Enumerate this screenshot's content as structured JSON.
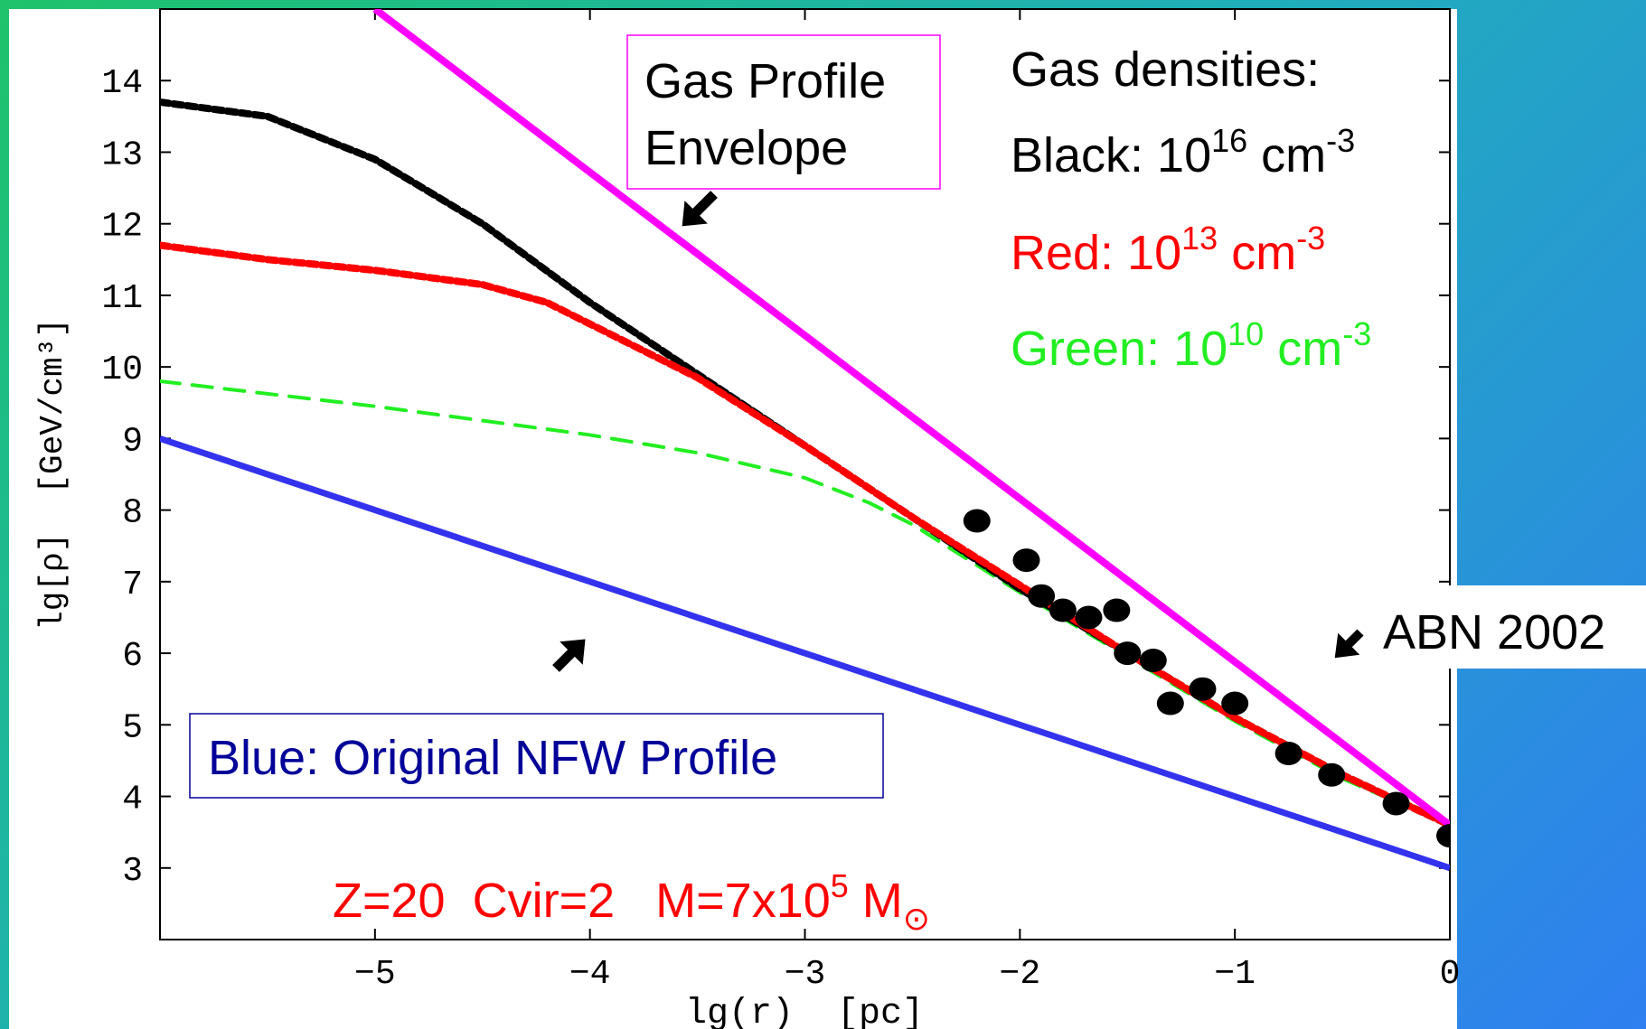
{
  "chart_data": {
    "type": "line",
    "xlabel": "lg(r)  [pc]",
    "ylabel": "lg[ρ]  [GeV/cm³]",
    "xlim": [
      -6,
      0
    ],
    "ylim": [
      2,
      15
    ],
    "xticks": [
      "-5",
      "-4",
      "-3",
      "-2",
      "-1",
      "0"
    ],
    "yticks": [
      "3",
      "4",
      "5",
      "6",
      "7",
      "8",
      "9",
      "10",
      "11",
      "12",
      "13",
      "14"
    ],
    "series": [
      {
        "name": "Gas Profile Envelope",
        "style": "solid",
        "color": "#ff00ff",
        "x": [
          -5.0,
          0
        ],
        "y": [
          15.0,
          3.6
        ]
      },
      {
        "name": "Original NFW Profile",
        "style": "solid",
        "color": "#3333ee",
        "x": [
          -6,
          0
        ],
        "y": [
          9.0,
          3.0
        ]
      },
      {
        "name": "Black",
        "style": "dashed",
        "color": "#000000",
        "x": [
          -6,
          -5.5,
          -5.0,
          -4.5,
          -4.0,
          -3.5,
          -3.0,
          -2.5,
          -2.0,
          -1.5,
          -1.0,
          -0.5,
          0
        ],
        "y": [
          13.7,
          13.5,
          12.9,
          12.0,
          10.9,
          9.9,
          8.9,
          7.9,
          6.9,
          6.0,
          5.1,
          4.3,
          3.6
        ]
      },
      {
        "name": "Red",
        "style": "dashed",
        "color": "#ff0000",
        "x": [
          -6,
          -5.5,
          -5.0,
          -4.5,
          -4.2,
          -4.0,
          -3.5,
          -3.0,
          -2.5,
          -2.0,
          -1.5,
          -1.0,
          -0.5,
          0
        ],
        "y": [
          11.7,
          11.5,
          11.35,
          11.15,
          10.9,
          10.6,
          9.85,
          8.9,
          7.9,
          6.95,
          6.0,
          5.1,
          4.3,
          3.6
        ]
      },
      {
        "name": "Green",
        "style": "dashed",
        "color": "#22ee22",
        "x": [
          -6,
          -5.0,
          -4.0,
          -3.5,
          -3.0,
          -2.7,
          -2.5,
          -2.0,
          -1.5,
          -1.0,
          -0.5,
          0
        ],
        "y": [
          9.8,
          9.45,
          9.05,
          8.8,
          8.45,
          8.1,
          7.8,
          6.85,
          5.95,
          5.05,
          4.25,
          3.6
        ]
      }
    ],
    "scatter": {
      "name": "ABN 2002",
      "color": "#000000",
      "x": [
        -2.2,
        -1.97,
        -1.9,
        -1.8,
        -1.68,
        -1.55,
        -1.5,
        -1.38,
        -1.3,
        -1.15,
        -1.0,
        -0.75,
        -0.55,
        -0.25,
        0
      ],
      "y": [
        7.85,
        7.3,
        6.8,
        6.6,
        6.5,
        6.6,
        6.0,
        5.9,
        5.3,
        5.5,
        5.3,
        4.6,
        4.3,
        3.9,
        3.45
      ]
    }
  },
  "annotations": {
    "gas_profile_envelope": [
      "Gas Profile",
      "Envelope"
    ],
    "gas_densities_title": "Gas densities:",
    "black_label": "Black: 10",
    "black_exp": "16",
    "black_unit": " cm",
    "black_unit_exp": "-3",
    "red_label": "Red: 10",
    "red_exp": "13",
    "red_unit": " cm",
    "red_unit_exp": "-3",
    "green_label": "Green: 10",
    "green_exp": "10",
    "green_unit": " cm",
    "green_unit_exp": "-3",
    "abn": "ABN 2002",
    "nfw": "Blue: Original NFW Profile",
    "params_main": "Z=20  Cvir=2   M=7x10",
    "params_exp": "5",
    "params_sym": " M",
    "params_sub": "⊙"
  },
  "colors": {
    "black": "#000000",
    "red": "#ff0000",
    "green": "#22ee22",
    "blue": "#000099",
    "magenta": "#ff00ff"
  }
}
